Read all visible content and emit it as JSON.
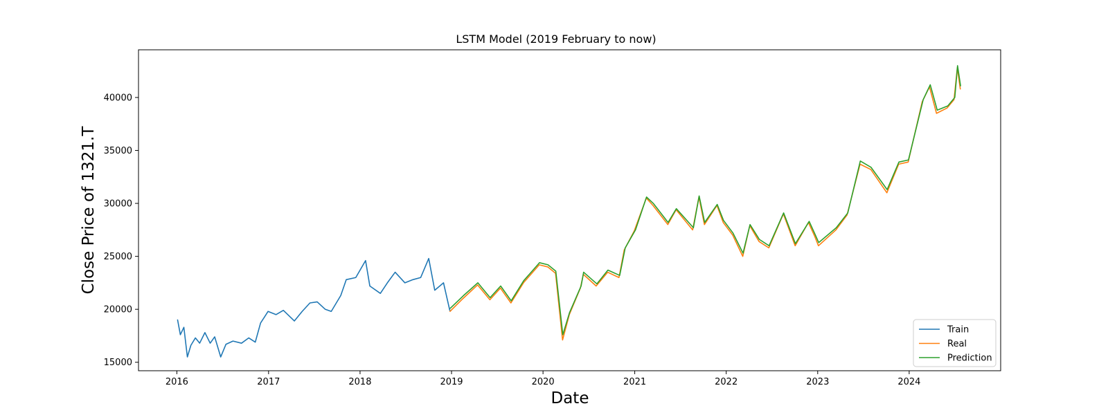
{
  "chart_data": {
    "type": "line",
    "title": "LSTM Model (2019 February to now)",
    "xlabel": "Date",
    "ylabel": "Close Price of 1321.T",
    "xlim": [
      "2015-08-01",
      "2024-12-31"
    ],
    "ylim": [
      14200,
      44500
    ],
    "x_ticks": [
      "2016",
      "2017",
      "2018",
      "2019",
      "2020",
      "2021",
      "2022",
      "2023",
      "2024"
    ],
    "y_ticks": [
      15000,
      20000,
      25000,
      30000,
      35000,
      40000
    ],
    "grid": false,
    "legend_position": "lower-right",
    "series": [
      {
        "name": "Train",
        "color": "#1f77b4",
        "points": [
          [
            "2016-01-04",
            19000
          ],
          [
            "2016-01-15",
            17600
          ],
          [
            "2016-01-29",
            18300
          ],
          [
            "2016-02-12",
            15500
          ],
          [
            "2016-02-26",
            16600
          ],
          [
            "2016-03-15",
            17300
          ],
          [
            "2016-04-01",
            16800
          ],
          [
            "2016-04-22",
            17800
          ],
          [
            "2016-05-13",
            16800
          ],
          [
            "2016-05-31",
            17400
          ],
          [
            "2016-06-24",
            15500
          ],
          [
            "2016-07-15",
            16700
          ],
          [
            "2016-08-12",
            17000
          ],
          [
            "2016-09-15",
            16800
          ],
          [
            "2016-10-14",
            17300
          ],
          [
            "2016-11-09",
            16900
          ],
          [
            "2016-11-30",
            18700
          ],
          [
            "2016-12-30",
            19800
          ],
          [
            "2017-01-31",
            19500
          ],
          [
            "2017-03-01",
            19900
          ],
          [
            "2017-04-14",
            18900
          ],
          [
            "2017-05-15",
            19800
          ],
          [
            "2017-06-15",
            20600
          ],
          [
            "2017-07-14",
            20700
          ],
          [
            "2017-08-15",
            20000
          ],
          [
            "2017-09-08",
            19800
          ],
          [
            "2017-10-16",
            21300
          ],
          [
            "2017-11-07",
            22800
          ],
          [
            "2017-12-15",
            23000
          ],
          [
            "2018-01-23",
            24600
          ],
          [
            "2018-02-09",
            22200
          ],
          [
            "2018-03-23",
            21500
          ],
          [
            "2018-04-20",
            22500
          ],
          [
            "2018-05-21",
            23500
          ],
          [
            "2018-06-29",
            22500
          ],
          [
            "2018-07-31",
            22800
          ],
          [
            "2018-08-31",
            23000
          ],
          [
            "2018-10-02",
            24800
          ],
          [
            "2018-10-26",
            21800
          ],
          [
            "2018-11-30",
            22500
          ],
          [
            "2018-12-25",
            19900
          ]
        ]
      },
      {
        "name": "Real",
        "color": "#ff7f0e",
        "points": [
          [
            "2018-12-26",
            19800
          ],
          [
            "2019-02-15",
            21000
          ],
          [
            "2019-04-15",
            22300
          ],
          [
            "2019-06-03",
            20900
          ],
          [
            "2019-07-15",
            22000
          ],
          [
            "2019-08-26",
            20600
          ],
          [
            "2019-10-15",
            22500
          ],
          [
            "2019-12-17",
            24200
          ],
          [
            "2020-01-20",
            24000
          ],
          [
            "2020-02-20",
            23400
          ],
          [
            "2020-03-19",
            17100
          ],
          [
            "2020-04-15",
            19500
          ],
          [
            "2020-05-29",
            22000
          ],
          [
            "2020-06-10",
            23300
          ],
          [
            "2020-07-31",
            22200
          ],
          [
            "2020-09-15",
            23500
          ],
          [
            "2020-10-30",
            23000
          ],
          [
            "2020-11-20",
            25600
          ],
          [
            "2020-12-30",
            27400
          ],
          [
            "2021-02-16",
            30500
          ],
          [
            "2021-03-15",
            29800
          ],
          [
            "2021-05-13",
            28000
          ],
          [
            "2021-06-15",
            29400
          ],
          [
            "2021-08-20",
            27500
          ],
          [
            "2021-09-14",
            30600
          ],
          [
            "2021-10-06",
            28000
          ],
          [
            "2021-11-25",
            29800
          ],
          [
            "2021-12-20",
            28200
          ],
          [
            "2022-01-27",
            27000
          ],
          [
            "2022-03-08",
            25000
          ],
          [
            "2022-04-05",
            27900
          ],
          [
            "2022-05-12",
            26400
          ],
          [
            "2022-06-20",
            25800
          ],
          [
            "2022-08-17",
            29000
          ],
          [
            "2022-10-03",
            26000
          ],
          [
            "2022-11-25",
            28200
          ],
          [
            "2022-12-20",
            26900
          ],
          [
            "2023-01-04",
            26000
          ],
          [
            "2023-03-15",
            27500
          ],
          [
            "2023-04-28",
            28900
          ],
          [
            "2023-06-19",
            33700
          ],
          [
            "2023-08-01",
            33200
          ],
          [
            "2023-10-04",
            31000
          ],
          [
            "2023-11-20",
            33700
          ],
          [
            "2023-12-28",
            33900
          ],
          [
            "2024-02-22",
            39600
          ],
          [
            "2024-03-22",
            41000
          ],
          [
            "2024-04-19",
            38500
          ],
          [
            "2024-05-31",
            39000
          ],
          [
            "2024-06-28",
            39800
          ],
          [
            "2024-07-11",
            42800
          ],
          [
            "2024-07-23",
            40800
          ]
        ]
      },
      {
        "name": "Prediction",
        "color": "#2ca02c",
        "points": [
          [
            "2018-12-27",
            20100
          ],
          [
            "2019-02-18",
            21300
          ],
          [
            "2019-04-16",
            22500
          ],
          [
            "2019-06-04",
            21100
          ],
          [
            "2019-07-16",
            22200
          ],
          [
            "2019-08-27",
            20800
          ],
          [
            "2019-10-16",
            22700
          ],
          [
            "2019-12-18",
            24400
          ],
          [
            "2020-01-21",
            24200
          ],
          [
            "2020-02-21",
            23600
          ],
          [
            "2020-03-20",
            17600
          ],
          [
            "2020-04-16",
            19700
          ],
          [
            "2020-06-01",
            22200
          ],
          [
            "2020-06-11",
            23500
          ],
          [
            "2020-08-03",
            22400
          ],
          [
            "2020-09-16",
            23700
          ],
          [
            "2020-11-02",
            23200
          ],
          [
            "2020-11-24",
            25800
          ],
          [
            "2021-01-04",
            27500
          ],
          [
            "2021-02-17",
            30600
          ],
          [
            "2021-03-16",
            30000
          ],
          [
            "2021-05-14",
            28200
          ],
          [
            "2021-06-16",
            29500
          ],
          [
            "2021-08-23",
            27700
          ],
          [
            "2021-09-15",
            30700
          ],
          [
            "2021-10-07",
            28200
          ],
          [
            "2021-11-26",
            29900
          ],
          [
            "2021-12-21",
            28400
          ],
          [
            "2022-01-28",
            27200
          ],
          [
            "2022-03-09",
            25300
          ],
          [
            "2022-04-06",
            28000
          ],
          [
            "2022-05-13",
            26600
          ],
          [
            "2022-06-21",
            26000
          ],
          [
            "2022-08-18",
            29100
          ],
          [
            "2022-10-04",
            26200
          ],
          [
            "2022-11-28",
            28300
          ],
          [
            "2022-12-21",
            27100
          ],
          [
            "2023-01-05",
            26300
          ],
          [
            "2023-03-16",
            27700
          ],
          [
            "2023-05-01",
            29100
          ],
          [
            "2023-06-20",
            34000
          ],
          [
            "2023-08-02",
            33400
          ],
          [
            "2023-10-05",
            31300
          ],
          [
            "2023-11-21",
            33900
          ],
          [
            "2023-12-29",
            34100
          ],
          [
            "2024-02-26",
            39800
          ],
          [
            "2024-03-25",
            41200
          ],
          [
            "2024-04-22",
            38800
          ],
          [
            "2024-06-03",
            39200
          ],
          [
            "2024-07-01",
            40000
          ],
          [
            "2024-07-12",
            43000
          ],
          [
            "2024-07-24",
            41100
          ]
        ]
      }
    ]
  }
}
